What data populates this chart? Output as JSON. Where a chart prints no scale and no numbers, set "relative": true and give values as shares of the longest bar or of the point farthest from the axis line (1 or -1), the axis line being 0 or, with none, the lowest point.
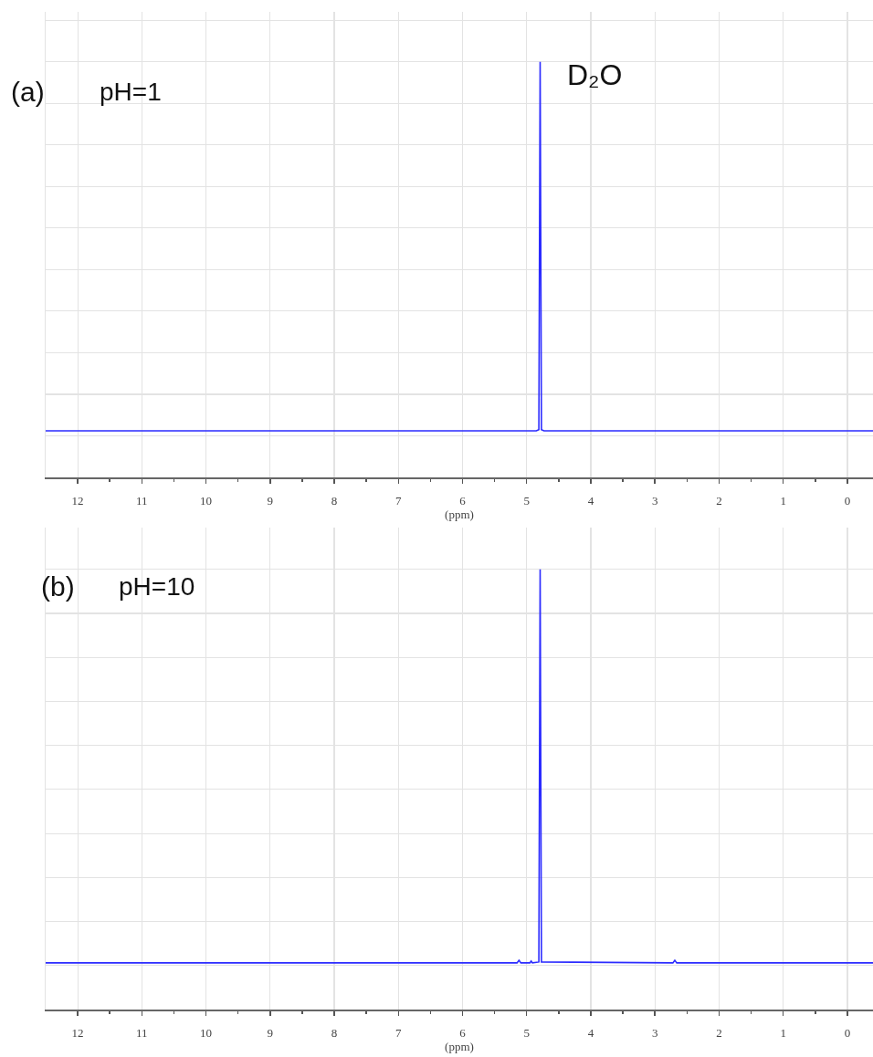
{
  "chart_data": [
    {
      "type": "line",
      "relative": true,
      "x": [
        12.5,
        4.85,
        4.81,
        4.79,
        4.77,
        4.73,
        -0.4
      ],
      "series": [
        {
          "color": "#2b2bff",
          "values": [
            0.112,
            0.112,
            0.115,
            1,
            0.115,
            0.112,
            0.112
          ]
        }
      ],
      "xlim": [
        12.5,
        -0.4
      ],
      "xticks": [
        12,
        {
          "value": 11.5,
          "label": null
        },
        11,
        {
          "value": 10.5,
          "label": null
        },
        10,
        {
          "value": 9.5,
          "label": null
        },
        9,
        {
          "value": 8.5,
          "label": null
        },
        8,
        {
          "value": 7.5,
          "label": null
        },
        7,
        {
          "value": 6.5,
          "label": null
        },
        6,
        {
          "value": 5.5,
          "label": null
        },
        5,
        {
          "value": 4.5,
          "label": null
        },
        4,
        {
          "value": 3.5,
          "label": null
        },
        3,
        {
          "value": 2.5,
          "label": null
        },
        2,
        {
          "value": 1.5,
          "label": null
        },
        1,
        {
          "value": 0.5,
          "label": null
        },
        0
      ],
      "xlabel": "(ppm)",
      "annotations": [
        "(a)",
        "pH=1",
        {
          "text": "D₂O",
          "x": 4.79,
          "y": 1
        }
      ],
      "grid": true,
      "tick_labels": "x"
    },
    {
      "type": "line",
      "relative": true,
      "x": [
        12.5,
        5.15,
        5.12,
        5.09,
        4.95,
        4.93,
        4.91,
        4.81,
        4.79,
        4.77,
        2.72,
        2.69,
        2.66,
        -0.4
      ],
      "series": [
        {
          "color": "#2b2bff",
          "values": [
            0.106,
            0.106,
            0.112,
            0.106,
            0.106,
            0.11,
            0.106,
            0.108,
            1,
            0.108,
            0.106,
            0.112,
            0.106,
            0.106
          ]
        }
      ],
      "xlim": [
        12.5,
        -0.4
      ],
      "xticks": [
        12,
        {
          "value": 11.5,
          "label": null
        },
        11,
        {
          "value": 10.5,
          "label": null
        },
        10,
        {
          "value": 9.5,
          "label": null
        },
        9,
        {
          "value": 8.5,
          "label": null
        },
        8,
        {
          "value": 7.5,
          "label": null
        },
        7,
        {
          "value": 6.5,
          "label": null
        },
        6,
        {
          "value": 5.5,
          "label": null
        },
        5,
        {
          "value": 4.5,
          "label": null
        },
        4,
        {
          "value": 3.5,
          "label": null
        },
        3,
        {
          "value": 2.5,
          "label": null
        },
        2,
        {
          "value": 1.5,
          "label": null
        },
        1,
        {
          "value": 0.5,
          "label": null
        },
        0
      ],
      "xlabel": "(ppm)",
      "annotations": [
        "(b)",
        "pH=10"
      ],
      "grid": true,
      "tick_labels": "x"
    }
  ]
}
